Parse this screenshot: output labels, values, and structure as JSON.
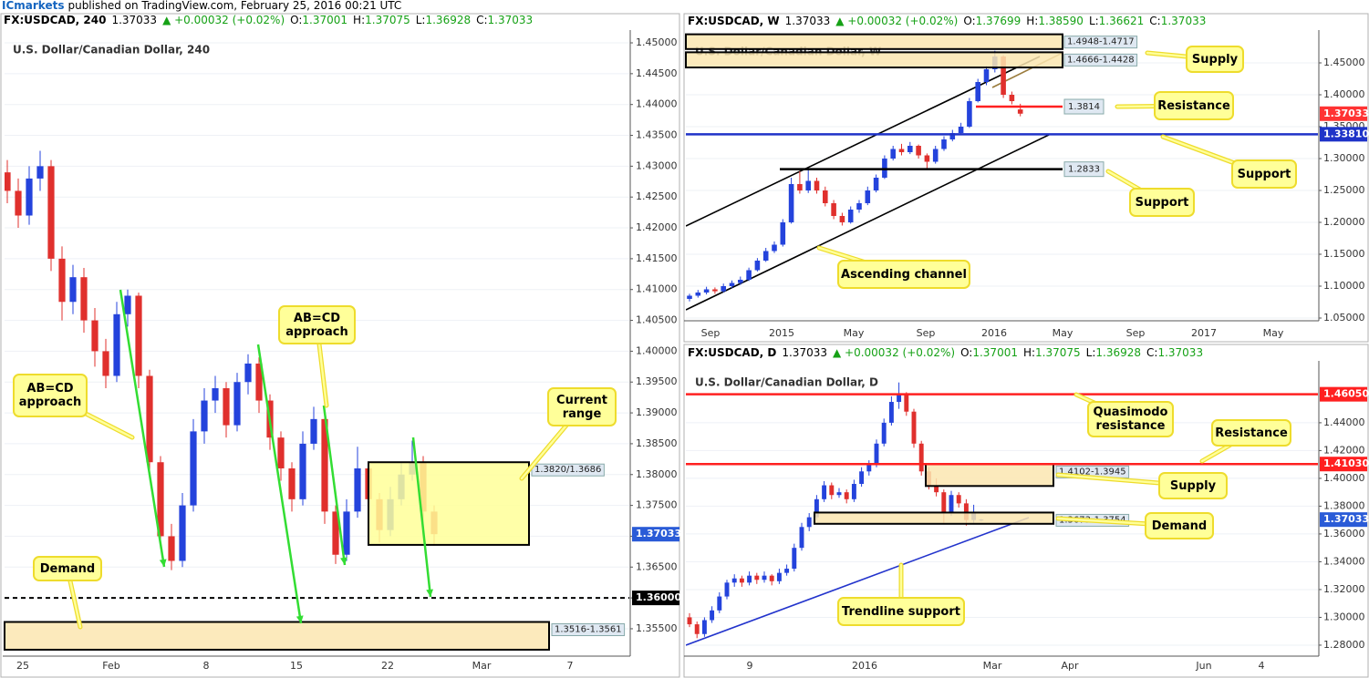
{
  "header": {
    "publisher": "ICmarkets",
    "published": "published on TradingView.com, February 25, 2016 00:21 UTC"
  },
  "chart_data": [
    {
      "type": "candlestick",
      "header": {
        "symbol": "FX:USDCAD, 240",
        "last": "1.37033",
        "change": "▲ +0.00032 (+0.02%)",
        "ohlc": [
          [
            "O:",
            "1.37001"
          ],
          [
            "H:",
            "1.37075"
          ],
          [
            "L:",
            "1.36928"
          ],
          [
            "C:",
            "1.37033"
          ]
        ]
      },
      "title": "U.S. Dollar/Canadian Dollar, 240",
      "colors": {
        "up": "#2443dc",
        "down": "#e0302d"
      },
      "grid": true,
      "ylim": [
        1.35056,
        1.45148
      ],
      "yticks": [
        {
          "value": 1.355,
          "label": "1.35500"
        },
        {
          "value": 1.36,
          "label": "1.36000"
        },
        {
          "value": 1.365,
          "label": "1.36500"
        },
        {
          "value": 1.37,
          "label": "1.37000"
        },
        {
          "value": 1.375,
          "label": "1.37500"
        },
        {
          "value": 1.38,
          "label": "1.38000"
        },
        {
          "value": 1.385,
          "label": "1.38500"
        },
        {
          "value": 1.39,
          "label": "1.39000"
        },
        {
          "value": 1.395,
          "label": "1.39500"
        },
        {
          "value": 1.4,
          "label": "1.40000"
        },
        {
          "value": 1.405,
          "label": "1.40500"
        },
        {
          "value": 1.41,
          "label": "1.41000"
        },
        {
          "value": 1.415,
          "label": "1.41500"
        },
        {
          "value": 1.42,
          "label": "1.42000"
        },
        {
          "value": 1.425,
          "label": "1.42500"
        },
        {
          "value": 1.43,
          "label": "1.43000"
        },
        {
          "value": 1.435,
          "label": "1.43500"
        },
        {
          "value": 1.44,
          "label": "1.44000"
        },
        {
          "value": 1.445,
          "label": "1.44500"
        },
        {
          "value": 1.45,
          "label": "1.45000"
        }
      ],
      "x_labels": [
        "25",
        "Feb",
        "8",
        "15",
        "22",
        "Mar",
        "7"
      ],
      "candles": [
        [
          1.429,
          1.431,
          1.424,
          1.426
        ],
        [
          1.426,
          1.428,
          1.42,
          1.422
        ],
        [
          1.422,
          1.43,
          1.4205,
          1.428
        ],
        [
          1.428,
          1.4325,
          1.426,
          1.43
        ],
        [
          1.43,
          1.431,
          1.413,
          1.415
        ],
        [
          1.415,
          1.417,
          1.405,
          1.408
        ],
        [
          1.408,
          1.414,
          1.406,
          1.412
        ],
        [
          1.412,
          1.4135,
          1.403,
          1.405
        ],
        [
          1.405,
          1.407,
          1.3975,
          1.4
        ],
        [
          1.4,
          1.402,
          1.394,
          1.396
        ],
        [
          1.396,
          1.408,
          1.395,
          1.406
        ],
        [
          1.406,
          1.41,
          1.404,
          1.409
        ],
        [
          1.409,
          1.4095,
          1.394,
          1.396
        ],
        [
          1.396,
          1.397,
          1.38,
          1.382
        ],
        [
          1.382,
          1.383,
          1.368,
          1.37
        ],
        [
          1.37,
          1.372,
          1.3645,
          1.366
        ],
        [
          1.366,
          1.377,
          1.365,
          1.375
        ],
        [
          1.375,
          1.389,
          1.374,
          1.387
        ],
        [
          1.387,
          1.394,
          1.385,
          1.392
        ],
        [
          1.392,
          1.396,
          1.39,
          1.394
        ],
        [
          1.394,
          1.395,
          1.386,
          1.388
        ],
        [
          1.388,
          1.3965,
          1.387,
          1.395
        ],
        [
          1.395,
          1.3995,
          1.393,
          1.398
        ],
        [
          1.398,
          1.399,
          1.39,
          1.392
        ],
        [
          1.392,
          1.393,
          1.384,
          1.386
        ],
        [
          1.386,
          1.387,
          1.379,
          1.381
        ],
        [
          1.381,
          1.382,
          1.374,
          1.376
        ],
        [
          1.376,
          1.387,
          1.375,
          1.385
        ],
        [
          1.385,
          1.391,
          1.384,
          1.389
        ],
        [
          1.389,
          1.3895,
          1.372,
          1.374
        ],
        [
          1.374,
          1.375,
          1.3655,
          1.367
        ],
        [
          1.367,
          1.376,
          1.366,
          1.374
        ],
        [
          1.374,
          1.3845,
          1.373,
          1.381
        ],
        [
          1.381,
          1.382,
          1.374,
          1.376
        ],
        [
          1.376,
          1.377,
          1.369,
          1.371
        ],
        [
          1.371,
          1.378,
          1.37,
          1.376
        ],
        [
          1.376,
          1.382,
          1.375,
          1.38
        ],
        [
          1.38,
          1.3855,
          1.379,
          1.382
        ],
        [
          1.382,
          1.383,
          1.372,
          1.374
        ],
        [
          1.374,
          1.375,
          1.3685,
          1.37033
        ]
      ],
      "zones": [
        {
          "label": "1.3820/1.3686",
          "top": 1.382,
          "bottom": 1.3686,
          "color": "#ffff99"
        },
        {
          "label": "1.3516-1.3561",
          "top": 1.3561,
          "bottom": 1.3516,
          "color": "#fbe6b0"
        }
      ],
      "levels": [
        {
          "value": 1.36,
          "label": "1.36000",
          "color": "#000000",
          "dashed": true
        }
      ],
      "price_label": {
        "value": 1.37033,
        "color": "#2a5bd7"
      },
      "callouts": [
        "AB=CD approach",
        "AB=CD approach",
        "Current range",
        "Demand"
      ]
    },
    {
      "type": "candlestick",
      "header": {
        "symbol": "FX:USDCAD, W",
        "last": "1.37033",
        "change": "▲ +0.00032 (+0.02%)",
        "ohlc": [
          [
            "O:",
            "1.37699"
          ],
          [
            "H:",
            "1.38590"
          ],
          [
            "L:",
            "1.36621"
          ],
          [
            "C:",
            "1.37033"
          ]
        ]
      },
      "title": "U.S. Dollar/Canadian Dollar, W",
      "colors": {
        "up": "#2443dc",
        "down": "#e0302d"
      },
      "grid": true,
      "ylim": [
        1.0457,
        1.4957
      ],
      "yticks": [
        {
          "value": 1.05,
          "label": "1.05000"
        },
        {
          "value": 1.1,
          "label": "1.10000"
        },
        {
          "value": 1.15,
          "label": "1.15000"
        },
        {
          "value": 1.2,
          "label": "1.20000"
        },
        {
          "value": 1.25,
          "label": "1.25000"
        },
        {
          "value": 1.3,
          "label": "1.30000"
        },
        {
          "value": 1.35,
          "label": "1.35000"
        },
        {
          "value": 1.4,
          "label": "1.40000"
        },
        {
          "value": 1.45,
          "label": "1.45000"
        }
      ],
      "x_labels": [
        "Sep",
        "2015",
        "May",
        "Sep",
        "2016",
        "May",
        "Sep",
        "2017",
        "May"
      ],
      "candles": [
        [
          1.08,
          1.088,
          1.076,
          1.085
        ],
        [
          1.085,
          1.094,
          1.082,
          1.09
        ],
        [
          1.09,
          1.099,
          1.087,
          1.095
        ],
        [
          1.095,
          1.098,
          1.088,
          1.092
        ],
        [
          1.092,
          1.104,
          1.09,
          1.1
        ],
        [
          1.1,
          1.109,
          1.097,
          1.105
        ],
        [
          1.105,
          1.115,
          1.102,
          1.11
        ],
        [
          1.11,
          1.129,
          1.108,
          1.125
        ],
        [
          1.125,
          1.144,
          1.123,
          1.14
        ],
        [
          1.14,
          1.16,
          1.138,
          1.155
        ],
        [
          1.155,
          1.17,
          1.152,
          1.165
        ],
        [
          1.165,
          1.205,
          1.162,
          1.2
        ],
        [
          1.2,
          1.27,
          1.198,
          1.26
        ],
        [
          1.26,
          1.28,
          1.245,
          1.25
        ],
        [
          1.25,
          1.283,
          1.246,
          1.265
        ],
        [
          1.265,
          1.27,
          1.245,
          1.25
        ],
        [
          1.25,
          1.256,
          1.225,
          1.23
        ],
        [
          1.23,
          1.235,
          1.205,
          1.21
        ],
        [
          1.21,
          1.215,
          1.195,
          1.2
        ],
        [
          1.2,
          1.225,
          1.198,
          1.22
        ],
        [
          1.22,
          1.235,
          1.215,
          1.23
        ],
        [
          1.23,
          1.256,
          1.227,
          1.25
        ],
        [
          1.25,
          1.275,
          1.247,
          1.27
        ],
        [
          1.27,
          1.305,
          1.268,
          1.3
        ],
        [
          1.3,
          1.32,
          1.297,
          1.315
        ],
        [
          1.315,
          1.323,
          1.305,
          1.31
        ],
        [
          1.31,
          1.326,
          1.307,
          1.32
        ],
        [
          1.32,
          1.322,
          1.3,
          1.305
        ],
        [
          1.305,
          1.308,
          1.283,
          1.295
        ],
        [
          1.295,
          1.32,
          1.292,
          1.315
        ],
        [
          1.315,
          1.335,
          1.312,
          1.33
        ],
        [
          1.33,
          1.345,
          1.327,
          1.34
        ],
        [
          1.34,
          1.356,
          1.337,
          1.35
        ],
        [
          1.35,
          1.395,
          1.348,
          1.39
        ],
        [
          1.39,
          1.425,
          1.388,
          1.42
        ],
        [
          1.42,
          1.445,
          1.415,
          1.44
        ],
        [
          1.44,
          1.469,
          1.435,
          1.46
        ],
        [
          1.46,
          1.462,
          1.395,
          1.4
        ],
        [
          1.4,
          1.405,
          1.385,
          1.39
        ],
        [
          1.37699,
          1.3859,
          1.36621,
          1.37033
        ]
      ],
      "zones": [
        {
          "label": "1.4948-1.4717",
          "top": 1.4948,
          "bottom": 1.4717,
          "color": "#fbe6b0"
        },
        {
          "label": "1.4666-1.4428",
          "top": 1.4666,
          "bottom": 1.4428,
          "color": "#fbe6b0"
        }
      ],
      "levels": [
        {
          "value": 1.3814,
          "color": "#ff2020",
          "dashed": false
        },
        {
          "value": 1.3381,
          "label": "1.33810",
          "color": "#1f33c8",
          "dashed": false
        },
        {
          "value": 1.2833,
          "color": "#000000",
          "dashed": false
        }
      ],
      "price_label": {
        "value": 1.37033,
        "color": "#ff3333"
      },
      "callouts": [
        "Supply",
        "Resistance",
        "Support",
        "Support",
        "Ascending channel"
      ]
    },
    {
      "type": "candlestick",
      "header": {
        "symbol": "FX:USDCAD, D",
        "last": "1.37033",
        "change": "▲ +0.00032 (+0.02%)",
        "ohlc": [
          [
            "O:",
            "1.37001"
          ],
          [
            "H:",
            "1.37075"
          ],
          [
            "L:",
            "1.36928"
          ],
          [
            "C:",
            "1.37033"
          ]
        ]
      },
      "title": "U.S. Dollar/Canadian Dollar, D",
      "colors": {
        "up": "#2443dc",
        "down": "#e0302d"
      },
      "grid": true,
      "ylim": [
        1.2721,
        1.4819
      ],
      "yticks": [
        {
          "value": 1.28,
          "label": "1.28000"
        },
        {
          "value": 1.3,
          "label": "1.30000"
        },
        {
          "value": 1.32,
          "label": "1.32000"
        },
        {
          "value": 1.34,
          "label": "1.34000"
        },
        {
          "value": 1.36,
          "label": "1.36000"
        },
        {
          "value": 1.38,
          "label": "1.38000"
        },
        {
          "value": 1.4,
          "label": "1.40000"
        },
        {
          "value": 1.42,
          "label": "1.42000"
        },
        {
          "value": 1.44,
          "label": "1.44000"
        }
      ],
      "x_labels": [
        "9",
        "2016",
        "Mar",
        "Apr",
        "Jun",
        "4"
      ],
      "candles": [
        [
          1.3,
          1.303,
          1.293,
          1.295
        ],
        [
          1.295,
          1.297,
          1.285,
          1.288
        ],
        [
          1.288,
          1.3,
          1.286,
          1.298
        ],
        [
          1.298,
          1.308,
          1.296,
          1.305
        ],
        [
          1.305,
          1.318,
          1.303,
          1.315
        ],
        [
          1.315,
          1.327,
          1.313,
          1.325
        ],
        [
          1.325,
          1.331,
          1.322,
          1.328
        ],
        [
          1.328,
          1.33,
          1.322,
          1.325
        ],
        [
          1.325,
          1.333,
          1.323,
          1.33
        ],
        [
          1.33,
          1.332,
          1.324,
          1.327
        ],
        [
          1.327,
          1.333,
          1.325,
          1.33
        ],
        [
          1.33,
          1.331,
          1.323,
          1.326
        ],
        [
          1.326,
          1.335,
          1.324,
          1.332
        ],
        [
          1.332,
          1.338,
          1.33,
          1.335
        ],
        [
          1.335,
          1.353,
          1.333,
          1.35
        ],
        [
          1.35,
          1.368,
          1.348,
          1.365
        ],
        [
          1.365,
          1.375,
          1.362,
          1.372
        ],
        [
          1.372,
          1.388,
          1.37,
          1.385
        ],
        [
          1.385,
          1.398,
          1.383,
          1.395
        ],
        [
          1.395,
          1.397,
          1.385,
          1.388
        ],
        [
          1.388,
          1.393,
          1.386,
          1.39
        ],
        [
          1.39,
          1.392,
          1.382,
          1.385
        ],
        [
          1.385,
          1.399,
          1.383,
          1.396
        ],
        [
          1.396,
          1.408,
          1.394,
          1.405
        ],
        [
          1.405,
          1.413,
          1.402,
          1.41
        ],
        [
          1.41,
          1.428,
          1.408,
          1.425
        ],
        [
          1.425,
          1.443,
          1.423,
          1.44
        ],
        [
          1.44,
          1.459,
          1.438,
          1.455
        ],
        [
          1.455,
          1.469,
          1.45,
          1.46
        ],
        [
          1.46,
          1.462,
          1.445,
          1.448
        ],
        [
          1.448,
          1.45,
          1.422,
          1.425
        ],
        [
          1.425,
          1.427,
          1.402,
          1.405
        ],
        [
          1.405,
          1.408,
          1.392,
          1.395
        ],
        [
          1.395,
          1.4,
          1.387,
          1.39
        ],
        [
          1.39,
          1.392,
          1.368,
          1.375
        ],
        [
          1.375,
          1.391,
          1.373,
          1.388
        ],
        [
          1.388,
          1.39,
          1.379,
          1.382
        ],
        [
          1.382,
          1.385,
          1.366,
          1.37
        ],
        [
          1.37,
          1.381,
          1.368,
          1.376
        ],
        [
          1.37001,
          1.37075,
          1.36928,
          1.37033
        ]
      ],
      "zones": [
        {
          "label": "1.4102-1.3945",
          "top": 1.4102,
          "bottom": 1.3945,
          "color": "#fbe6b0"
        },
        {
          "label": "1.3673-1.3754",
          "top": 1.3754,
          "bottom": 1.3673,
          "color": "#fbe6b0"
        }
      ],
      "levels": [
        {
          "value": 1.4605,
          "label": "1.46050",
          "color": "#ff2020",
          "dashed": false
        },
        {
          "value": 1.4103,
          "label": "1.41030",
          "color": "#ff2020",
          "dashed": false
        }
      ],
      "price_label": {
        "value": 1.37033,
        "color": "#2a5bd7"
      },
      "callouts": [
        "Quasimodo resistance",
        "Resistance",
        "Supply",
        "Demand",
        "Trendline support"
      ]
    }
  ]
}
